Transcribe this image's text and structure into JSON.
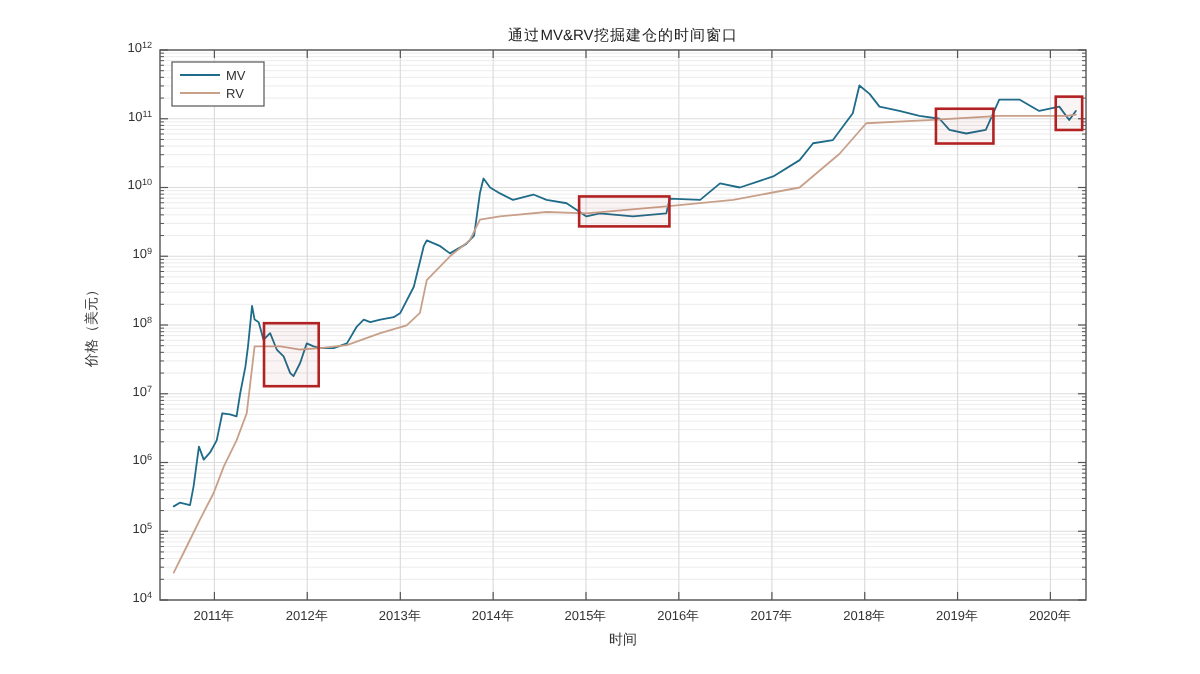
{
  "chart_data": {
    "type": "line",
    "title": "通过MV&RV挖掘建仓的时间窗口",
    "xlabel": "时间",
    "ylabel": "价格（美元）",
    "log": "y",
    "grid": true,
    "legend": "top left",
    "xlim": [
      "2010-06-01",
      "2020-05-20"
    ],
    "xticks": [
      {
        "value": "2011-01-01",
        "label": "2011年"
      },
      {
        "value": "2012-01-01",
        "label": "2012年"
      },
      {
        "value": "2013-01-01",
        "label": "2013年"
      },
      {
        "value": "2014-01-01",
        "label": "2014年"
      },
      {
        "value": "2015-01-01",
        "label": "2015年"
      },
      {
        "value": "2016-01-01",
        "label": "2016年"
      },
      {
        "value": "2017-01-01",
        "label": "2017年"
      },
      {
        "value": "2018-01-01",
        "label": "2018年"
      },
      {
        "value": "2019-01-01",
        "label": "2019年"
      },
      {
        "value": "2020-01-01",
        "label": "2020年"
      }
    ],
    "ylim": [
      10000,
      1000000000000
    ],
    "yticks": [
      {
        "value": 10000,
        "label": "10$^{4}$"
      },
      {
        "value": 100000,
        "label": "10$^{5}$"
      },
      {
        "value": 1000000,
        "label": "10$^{6}$"
      },
      {
        "value": 10000000,
        "label": "10$^{7}$"
      },
      {
        "value": 100000000,
        "label": "10$^{8}$"
      },
      {
        "value": 1000000000,
        "label": "10$^{9}$"
      },
      {
        "value": 10000000000,
        "label": "10$^{10}$"
      },
      {
        "value": 100000000000,
        "label": "10$^{11}$"
      },
      {
        "value": 1000000000000,
        "label": "10$^{12}$"
      }
    ],
    "bands": [
      {
        "axis": "x",
        "from": "2011-07-15",
        "to": "2012-02-15",
        "color": "#b22222"
      },
      {
        "axis": "x",
        "from": "2014-12-05",
        "to": "2015-11-25",
        "color": "#b22222"
      },
      {
        "axis": "x",
        "from": "2018-10-08",
        "to": "2019-05-22",
        "color": "#b22222"
      },
      {
        "axis": "x",
        "from": "2020-01-22",
        "to": "2020-05-05",
        "color": "#b22222"
      }
    ],
    "series": [
      {
        "name": "MV",
        "color": "#1f6b8a",
        "x": [
          "2010-07-25",
          "2010-08-18",
          "2010-09-27",
          "2010-10-11",
          "2010-11-01",
          "2010-11-20",
          "2010-12-15",
          "2011-01-10",
          "2011-02-01",
          "2011-03-03",
          "2011-03-29",
          "2011-04-12",
          "2011-05-03",
          "2011-05-13",
          "2011-05-29",
          "2011-06-08",
          "2011-06-24",
          "2011-07-13",
          "2011-08-08",
          "2011-09-03",
          "2011-09-30",
          "2011-10-26",
          "2011-11-08",
          "2011-12-04",
          "2011-12-30",
          "2012-01-26",
          "2012-02-21",
          "2012-04-14",
          "2012-06-05",
          "2012-07-14",
          "2012-08-10",
          "2012-09-05",
          "2012-10-14",
          "2012-12-06",
          "2013-01-01",
          "2013-02-23",
          "2013-04-03",
          "2013-04-15",
          "2013-06-07",
          "2013-07-15",
          "2013-09-16",
          "2013-10-18",
          "2013-11-10",
          "2013-11-24",
          "2013-12-20",
          "2014-01-28",
          "2014-03-20",
          "2014-06-08",
          "2014-07-30",
          "2014-10-17",
          "2015-01-03",
          "2015-02-24",
          "2015-07-05",
          "2015-11-13",
          "2015-11-26",
          "2016-03-25",
          "2016-06-11",
          "2016-08-28",
          "2017-01-06",
          "2017-04-20",
          "2017-06-12",
          "2017-08-29",
          "2017-11-15",
          "2017-12-11",
          "2018-01-20",
          "2018-02-28",
          "2018-05-17",
          "2018-08-04",
          "2018-10-22",
          "2018-11-30",
          "2019-02-04",
          "2019-04-22",
          "2019-06-14",
          "2019-09-01",
          "2019-11-18",
          "2020-02-05",
          "2020-03-15",
          "2020-04-10"
        ],
        "values": [
          230000.0,
          260000.0,
          240000.0,
          450000.0,
          1700000.0,
          1100000.0,
          1400000.0,
          2100000.0,
          5200000.0,
          5000000.0,
          4700000.0,
          10000000.0,
          25000000.0,
          49000000.0,
          190000000.0,
          120000000.0,
          110000000.0,
          61000000.0,
          76000000.0,
          44000000.0,
          35000000.0,
          20000000.0,
          18000000.0,
          28000000.0,
          54000000.0,
          49000000.0,
          46000000.0,
          46000000.0,
          54000000.0,
          95000000.0,
          120000000.0,
          110000000.0,
          120000000.0,
          130000000.0,
          150000000.0,
          360000000.0,
          1400000000.0,
          1700000000.0,
          1400000000.0,
          1100000000.0,
          1500000000.0,
          2000000000.0,
          8300000000.0,
          13500000000.0,
          10000000000.0,
          8200000000.0,
          6600000000.0,
          7900000000.0,
          6600000000.0,
          5900000000.0,
          3800000000.0,
          4200000000.0,
          3800000000.0,
          4200000000.0,
          6900000000.0,
          6600000000.0,
          11500000000.0,
          10000000000.0,
          14500000000.0,
          25000000000.0,
          44000000000.0,
          49000000000.0,
          120000000000.0,
          305000000000.0,
          230000000000.0,
          150000000000.0,
          130000000000.0,
          110000000000.0,
          100000000000.0,
          69000000000.0,
          61000000000.0,
          69000000000.0,
          190000000000.0,
          190000000000.0,
          130000000000.0,
          150000000000.0,
          96000000000.0,
          130000000000.0
        ]
      },
      {
        "name": "RV",
        "color": "#c8a08a",
        "x": [
          "2010-07-25",
          "2010-09-15",
          "2010-11-06",
          "2010-12-29",
          "2011-02-07",
          "2011-03-29",
          "2011-05-08",
          "2011-06-08",
          "2011-07-13",
          "2011-09-17",
          "2011-12-04",
          "2012-02-21",
          "2012-06-05",
          "2012-10-14",
          "2013-01-26",
          "2013-03-19",
          "2013-04-15",
          "2013-07-15",
          "2013-10-01",
          "2013-11-10",
          "2014-01-28",
          "2014-07-30",
          "2015-01-03",
          "2015-11-13",
          "2016-08-02",
          "2017-04-20",
          "2017-09-24",
          "2018-01-07",
          "2018-09-26",
          "2019-06-14",
          "2020-03-03",
          "2020-04-10"
        ],
        "values": [
          25000.0,
          61000.0,
          150000.0,
          360000.0,
          880000.0,
          2100000.0,
          5200000.0,
          49000000.0,
          49000000.0,
          49000000.0,
          44000000.0,
          46000000.0,
          51000000.0,
          76000000.0,
          99000000.0,
          150000000.0,
          450000000.0,
          1000000000.0,
          1700000000.0,
          3400000000.0,
          3800000000.0,
          4400000000.0,
          4200000000.0,
          5300000000.0,
          6600000000.0,
          10000000000.0,
          31000000000.0,
          86000000000.0,
          96000000000.0,
          110000000000.0,
          110000000000.0,
          115000000000.0
        ]
      }
    ]
  }
}
